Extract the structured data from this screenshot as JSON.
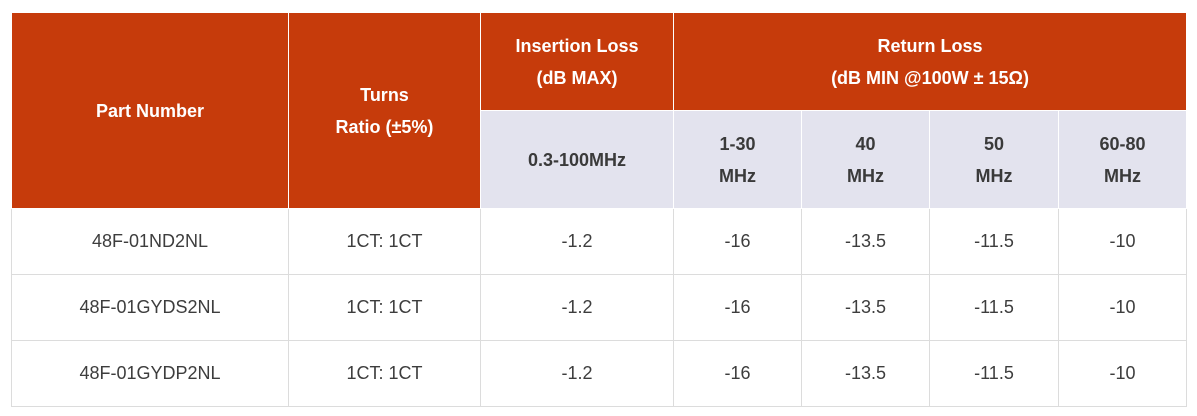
{
  "table": {
    "headers": {
      "part_number": "Part Number",
      "turns_ratio": [
        "Turns",
        "Ratio (±5%)"
      ],
      "insertion_loss": [
        "Insertion Loss",
        "(dB MAX)"
      ],
      "return_loss": [
        "Return Loss",
        "(dB MIN @100W ± 15Ω)"
      ],
      "sub": {
        "il_range": "0.3-100MHz",
        "rl_ranges": [
          [
            "1-30",
            "MHz"
          ],
          [
            "40",
            "MHz"
          ],
          [
            "50",
            "MHz"
          ],
          [
            "60-80",
            "MHz"
          ]
        ]
      }
    },
    "rows": [
      {
        "part": "48F-01ND2NL",
        "ratio": "1CT: 1CT",
        "il": "-1.2",
        "rl": [
          "-16",
          "-13.5",
          "-11.5",
          "-10"
        ]
      },
      {
        "part": "48F-01GYDS2NL",
        "ratio": "1CT: 1CT",
        "il": "-1.2",
        "rl": [
          "-16",
          "-13.5",
          "-11.5",
          "-10"
        ]
      },
      {
        "part": "48F-01GYDP2NL",
        "ratio": "1CT: 1CT",
        "il": "-1.2",
        "rl": [
          "-16",
          "-13.5",
          "-11.5",
          "-10"
        ]
      }
    ],
    "colors": {
      "header_bg": "#c63b0b",
      "subheader_bg": "#e3e3ee",
      "border": "#dcdcdc"
    }
  }
}
